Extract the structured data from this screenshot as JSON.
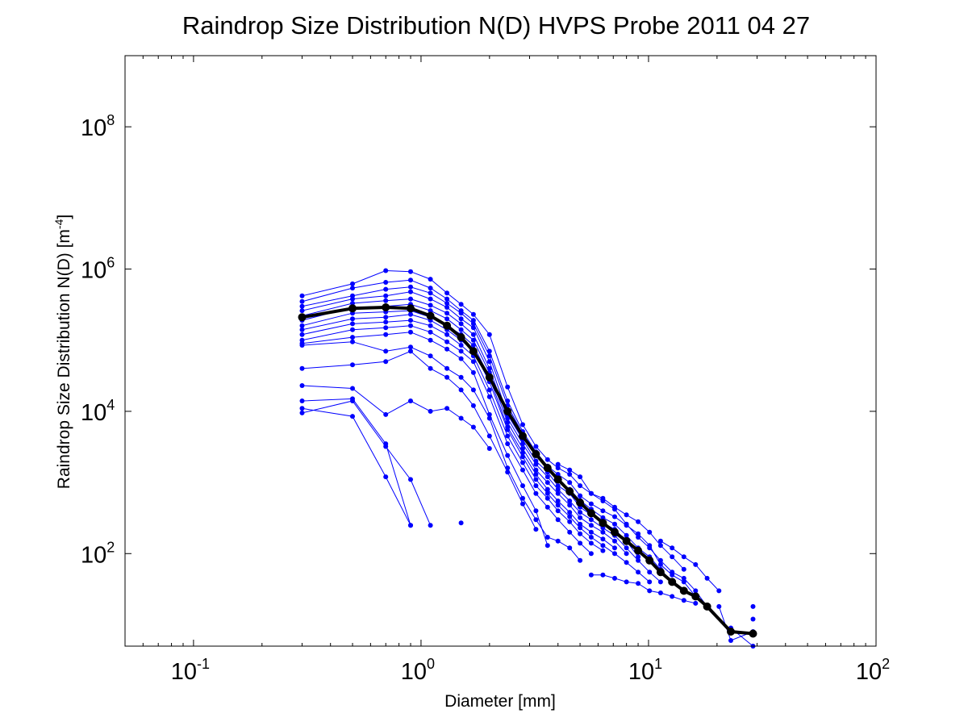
{
  "chart_data": {
    "type": "line",
    "title": "Raindrop Size Distribution N(D) HVPS Probe 2011 04 27",
    "xlabel": "Diameter [mm]",
    "ylabel": "Raindrop Size Distribution N(D) [m",
    "ylabel_exp": "-4",
    "ylabel_close": "]",
    "xscale": "log",
    "yscale": "log",
    "xlim": [
      0.05,
      100
    ],
    "ylim": [
      5,
      1000000000
    ],
    "grid": false,
    "legend": "none",
    "x_ticks": [
      {
        "base": "10",
        "exp": "-1",
        "value": 0.1
      },
      {
        "base": "10",
        "exp": "0",
        "value": 1
      },
      {
        "base": "10",
        "exp": "1",
        "value": 10
      },
      {
        "base": "10",
        "exp": "2",
        "value": 100
      }
    ],
    "y_ticks": [
      {
        "base": "10",
        "exp": "2",
        "value": 100
      },
      {
        "base": "10",
        "exp": "4",
        "value": 10000
      },
      {
        "base": "10",
        "exp": "6",
        "value": 1000000
      },
      {
        "base": "10",
        "exp": "8",
        "value": 100000000
      }
    ],
    "series_colors": {
      "samples": "#0000ff",
      "mean": "#000000"
    },
    "series": [
      {
        "x": [
          0.3,
          0.5,
          0.7,
          0.9,
          1.1,
          1.3,
          1.5,
          1.7,
          2.0,
          2.4,
          2.8,
          3.2,
          3.6,
          4.0,
          4.5,
          5.0,
          5.6,
          6.3,
          7.1,
          8.0,
          9.0,
          10.1,
          11.3,
          12.7,
          14.3,
          16.1,
          18.1
        ],
        "y": [
          420000,
          620000,
          950000,
          920000,
          720000,
          460000,
          320000,
          230000,
          120000,
          22000,
          6500,
          3200,
          2100,
          1600,
          1300,
          900,
          700,
          550,
          420,
          260,
          170,
          120,
          80,
          55,
          45,
          30,
          18
        ]
      },
      {
        "x": [
          0.3,
          0.5,
          0.7,
          0.9,
          1.1,
          1.3,
          1.5,
          1.7,
          2.0,
          2.4,
          2.8,
          3.2,
          3.6,
          4.0,
          4.5,
          5.0,
          5.6,
          6.3,
          7.1,
          8.0,
          9.0,
          10.1,
          11.3,
          12.7,
          14.3,
          16.1
        ],
        "y": [
          350000,
          540000,
          650000,
          700000,
          540000,
          380000,
          260000,
          190000,
          70000,
          14000,
          5200,
          2700,
          1700,
          1300,
          1000,
          650,
          500,
          400,
          330,
          250,
          190,
          130,
          70,
          50,
          40,
          25
        ]
      },
      {
        "x": [
          0.3,
          0.5,
          0.7,
          0.9,
          1.1,
          1.3,
          1.5,
          1.7,
          2.0,
          2.4,
          2.8,
          3.2,
          3.6,
          4.0,
          4.5,
          5.0,
          5.6,
          6.3,
          7.1,
          8.0,
          9.0,
          10.1,
          11.3,
          12.7
        ],
        "y": [
          300000,
          420000,
          520000,
          560000,
          460000,
          330000,
          240000,
          170000,
          60000,
          12000,
          4800,
          2500,
          1600,
          1100,
          800,
          560,
          420,
          320,
          260,
          180,
          120,
          90,
          60,
          40
        ]
      },
      {
        "x": [
          0.3,
          0.5,
          0.7,
          0.9,
          1.1,
          1.3,
          1.5,
          1.7,
          2.0,
          2.4,
          2.8,
          3.2,
          3.6,
          4.0,
          4.5,
          5.0,
          5.6,
          6.3,
          7.1,
          8.0,
          9.0
        ],
        "y": [
          260000,
          380000,
          420000,
          480000,
          380000,
          290000,
          200000,
          150000,
          50000,
          9000,
          4000,
          2000,
          1400,
          900,
          700,
          450,
          350,
          270,
          220,
          150,
          90
        ]
      },
      {
        "x": [
          0.3,
          0.5,
          0.7,
          0.9,
          1.1,
          1.3,
          1.5,
          1.7,
          2.0,
          2.4,
          2.8,
          3.2,
          3.6,
          4.0,
          4.5,
          5.0,
          5.6,
          6.3,
          7.1,
          8.0,
          9.0,
          10.1,
          11.3
        ],
        "y": [
          220000,
          330000,
          360000,
          380000,
          310000,
          240000,
          170000,
          120000,
          40000,
          8000,
          3500,
          1800,
          1200,
          800,
          550,
          380,
          300,
          230,
          180,
          120,
          80,
          55,
          40
        ]
      },
      {
        "x": [
          0.3,
          0.5,
          0.7,
          0.9,
          1.1,
          1.3,
          1.5,
          1.7,
          2.0,
          2.4,
          2.8,
          3.2,
          3.6,
          4.0,
          4.5,
          5.0,
          5.6,
          6.3,
          7.1,
          8.0
        ],
        "y": [
          190000,
          290000,
          300000,
          320000,
          260000,
          200000,
          140000,
          100000,
          35000,
          7000,
          3000,
          1500,
          1000,
          700,
          480,
          320,
          250,
          200,
          150,
          100
        ]
      },
      {
        "x": [
          0.3,
          0.5,
          0.7,
          0.9,
          1.1,
          1.3,
          1.5,
          1.7,
          2.0,
          2.4,
          2.8,
          3.2,
          3.6,
          4.0,
          4.5,
          5.0,
          5.6,
          6.3,
          7.1
        ],
        "y": [
          160000,
          240000,
          250000,
          260000,
          210000,
          160000,
          120000,
          85000,
          30000,
          6000,
          2600,
          1300,
          800,
          550,
          380,
          260,
          200,
          160,
          120
        ]
      },
      {
        "x": [
          0.3,
          0.5,
          0.7,
          0.9,
          1.1,
          1.3,
          1.5,
          1.7,
          2.0,
          2.4,
          2.8,
          3.2,
          3.6,
          4.0,
          4.5,
          5.0,
          5.6,
          6.3,
          7.1,
          8.0,
          9.0,
          10.1
        ],
        "y": [
          140000,
          200000,
          210000,
          230000,
          190000,
          140000,
          100000,
          70000,
          26000,
          5500,
          2300,
          1100,
          700,
          480,
          330,
          230,
          170,
          130,
          100,
          75,
          55,
          40
        ]
      },
      {
        "x": [
          0.3,
          0.5,
          0.7,
          0.9,
          1.1,
          1.3,
          1.5,
          1.7,
          2.0,
          2.4,
          2.8,
          3.2,
          3.6,
          4.0,
          4.5,
          5.0,
          5.6,
          6.3
        ],
        "y": [
          120000,
          170000,
          180000,
          190000,
          160000,
          120000,
          85000,
          60000,
          20000,
          4500,
          1900,
          900,
          600,
          400,
          280,
          190,
          140,
          110
        ]
      },
      {
        "x": [
          0.3,
          0.5,
          0.7,
          0.9,
          1.1,
          1.3,
          1.5,
          1.7,
          2.0,
          2.4,
          2.8,
          3.2,
          3.6,
          4.0,
          4.5,
          5.0,
          5.6
        ],
        "y": [
          100000,
          140000,
          150000,
          160000,
          130000,
          95000,
          70000,
          50000,
          16000,
          3500,
          1500,
          700,
          450,
          300,
          200,
          140,
          100
        ]
      },
      {
        "x": [
          0.3,
          0.5,
          0.7,
          0.9,
          1.1,
          1.3,
          1.5,
          1.7,
          2.0,
          2.4,
          2.8,
          3.2,
          3.6
        ],
        "y": [
          90000,
          110000,
          120000,
          130000,
          100000,
          75000,
          55000,
          35000,
          9000,
          2400,
          900,
          400,
          130
        ]
      },
      {
        "x": [
          0.3,
          0.5,
          0.7,
          0.9,
          1.1,
          1.3,
          1.5,
          1.7,
          2.0,
          2.4,
          2.8,
          3.2,
          3.6,
          4.0,
          4.5,
          5.0
        ],
        "y": [
          85000,
          95000,
          70000,
          80000,
          60000,
          40000,
          30000,
          20000,
          8000,
          1600,
          600,
          300,
          170,
          150,
          120,
          80
        ]
      },
      {
        "x": [
          0.3,
          0.5,
          0.7,
          0.9,
          1.1,
          1.3,
          1.5,
          1.7,
          2.0,
          2.4,
          2.8,
          3.2
        ],
        "y": [
          40000,
          45000,
          50000,
          70000,
          40000,
          30000,
          20000,
          12000,
          4500,
          1400,
          500,
          220
        ]
      },
      {
        "x": [
          0.3,
          0.5,
          0.7,
          0.9,
          1.1,
          1.3,
          1.5,
          1.7,
          2.0
        ],
        "y": [
          23000,
          21000,
          9000,
          14000,
          10000,
          11000,
          8000,
          6000,
          3000
        ]
      },
      {
        "x": [
          0.3,
          0.5,
          0.7,
          0.9
        ],
        "y": [
          14000,
          15000,
          3500,
          250
        ]
      },
      {
        "x": [
          0.3,
          0.5,
          0.7,
          0.9
        ],
        "y": [
          11000,
          8500,
          1200,
          250
        ]
      },
      {
        "x": [
          0.3,
          0.5,
          0.7,
          0.9,
          1.1
        ],
        "y": [
          9500,
          14000,
          3200,
          1100,
          250
        ]
      },
      {
        "x": [
          1.5
        ],
        "y": [
          270
        ]
      },
      {
        "x": [
          4.0,
          4.5,
          5.0,
          5.6,
          6.3,
          7.1,
          8.0,
          9.0,
          10.1,
          11.3,
          12.7,
          14.3
        ],
        "y": [
          1800,
          1500,
          1200,
          700,
          600,
          450,
          350,
          280,
          200,
          130,
          90,
          60
        ]
      },
      {
        "x": [
          5.6,
          6.3,
          7.1,
          8.0,
          9.0,
          10.1,
          11.3,
          12.7,
          14.3,
          16.1
        ],
        "y": [
          50,
          50,
          45,
          40,
          38,
          30,
          28,
          25,
          22,
          20
        ]
      },
      {
        "x": [
          11.3,
          12.7,
          14.3,
          16.1,
          18.1,
          20.4
        ],
        "y": [
          150,
          120,
          90,
          70,
          45,
          30
        ]
      },
      {
        "x": [
          20.4,
          23.0,
          28.8
        ],
        "y": [
          18,
          6,
          8
        ]
      },
      {
        "x": [
          23.0,
          28.8
        ],
        "y": [
          9,
          5
        ]
      },
      {
        "x": [
          28.8
        ],
        "y": [
          18
        ]
      },
      {
        "x": [
          28.8
        ],
        "y": [
          12
        ]
      }
    ],
    "mean_series": {
      "x": [
        0.3,
        0.5,
        0.7,
        0.9,
        1.1,
        1.3,
        1.5,
        1.7,
        2.0,
        2.4,
        2.8,
        3.2,
        3.6,
        4.0,
        4.5,
        5.0,
        5.6,
        6.3,
        7.1,
        8.0,
        9.0,
        10.1,
        11.3,
        12.7,
        14.3,
        16.1,
        18.1,
        23.0,
        28.8
      ],
      "y": [
        210000,
        280000,
        290000,
        280000,
        220000,
        160000,
        110000,
        70000,
        30000,
        10000,
        4500,
        2500,
        1600,
        1100,
        750,
        520,
        370,
        270,
        200,
        150,
        110,
        80,
        55,
        40,
        30,
        25,
        18,
        8,
        7.5
      ]
    }
  }
}
